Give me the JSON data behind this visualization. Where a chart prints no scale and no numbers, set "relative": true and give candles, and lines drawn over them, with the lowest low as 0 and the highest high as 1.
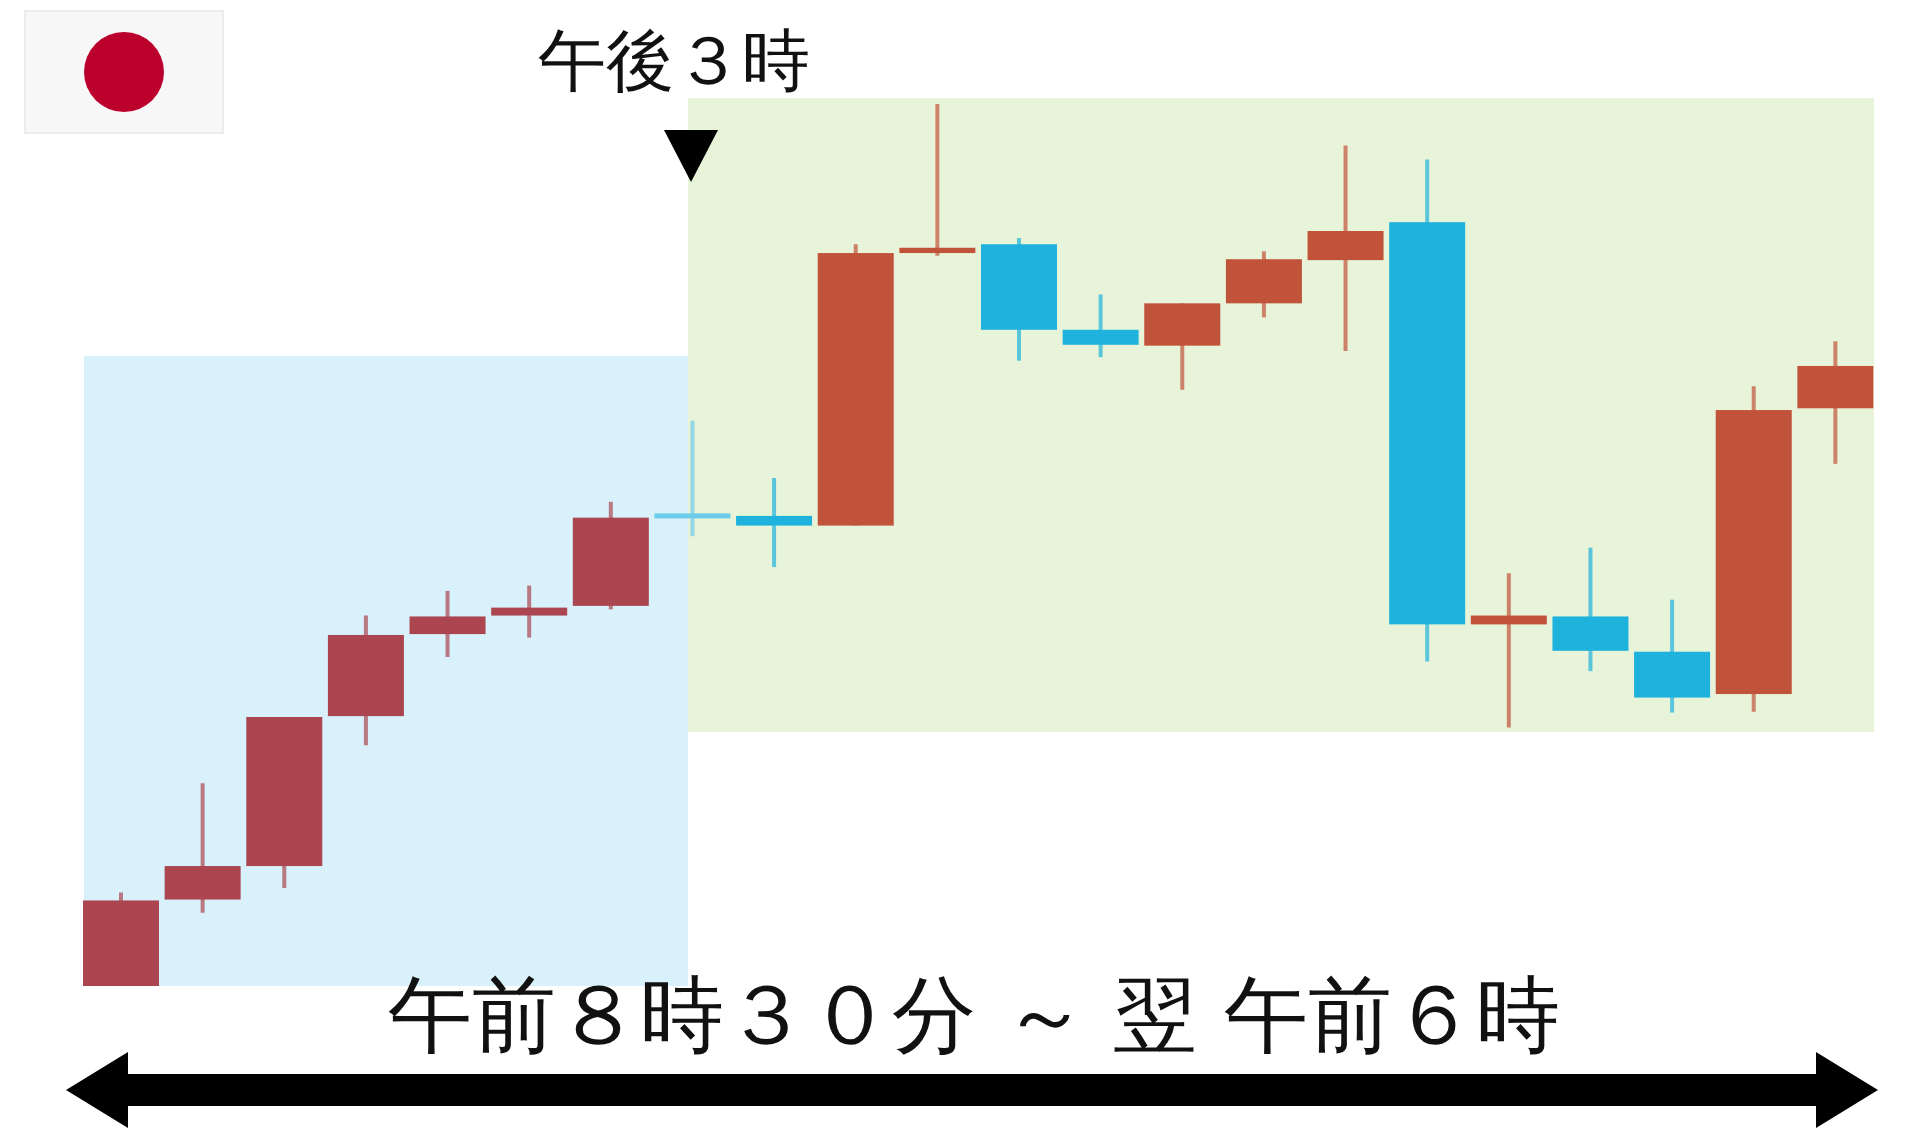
{
  "chart_data": {
    "type": "candlestick",
    "relative": true,
    "categories": [
      null,
      null,
      null,
      null,
      null,
      null,
      null,
      null,
      null,
      null,
      null,
      null,
      null,
      null,
      null,
      null,
      null,
      null,
      null,
      null,
      null,
      null
    ],
    "ohlc": [
      [
        0,
        0.106,
        0,
        0.097
      ],
      [
        0.098,
        0.23,
        0.083,
        0.136
      ],
      [
        0.136,
        0.305,
        0.111,
        0.305
      ],
      [
        0.306,
        0.42,
        0.273,
        0.398
      ],
      [
        0.399,
        0.448,
        0.373,
        0.419
      ],
      [
        0.42,
        0.454,
        0.395,
        0.429
      ],
      [
        0.431,
        0.549,
        0.427,
        0.531
      ],
      [
        0.533,
        0.641,
        0.51,
        0.533
      ],
      [
        0.533,
        0.576,
        0.475,
        0.522
      ],
      [
        0.522,
        0.841,
        0.522,
        0.831
      ],
      [
        0.831,
        1,
        0.828,
        0.837
      ],
      [
        0.841,
        0.848,
        0.709,
        0.744
      ],
      [
        0.744,
        0.784,
        0.713,
        0.727
      ],
      [
        0.726,
        0.774,
        0.676,
        0.774
      ],
      [
        0.774,
        0.833,
        0.758,
        0.824
      ],
      [
        0.823,
        0.953,
        0.72,
        0.856
      ],
      [
        0.866,
        0.937,
        0.368,
        0.41
      ],
      [
        0.41,
        0.468,
        0.293,
        0.42
      ],
      [
        0.419,
        0.497,
        0.357,
        0.38
      ],
      [
        0.379,
        0.438,
        0.31,
        0.327
      ],
      [
        0.331,
        0.68,
        0.311,
        0.653
      ],
      [
        0.655,
        0.731,
        0.592,
        0.703
      ]
    ],
    "colors": [
      "#ab4650",
      "#ab4650",
      "#ab4650",
      "#ab4650",
      "#ab4650",
      "#ab4650",
      "#ab4650",
      "#6ccbea",
      "#1fb2dc",
      "#c0533a",
      "#c0533a",
      "#1fb2dc",
      "#1fb2dc",
      "#c0533a",
      "#c0533a",
      "#c0533a",
      "#1fb2dc",
      "#c0533a",
      "#1fb2dc",
      "#1fb2dc",
      "#c0533a",
      "#c0533a"
    ],
    "xlabel": "午前８時３０分 ～ 翌 午前６時",
    "annotations": [
      "午後３時"
    ]
  }
}
